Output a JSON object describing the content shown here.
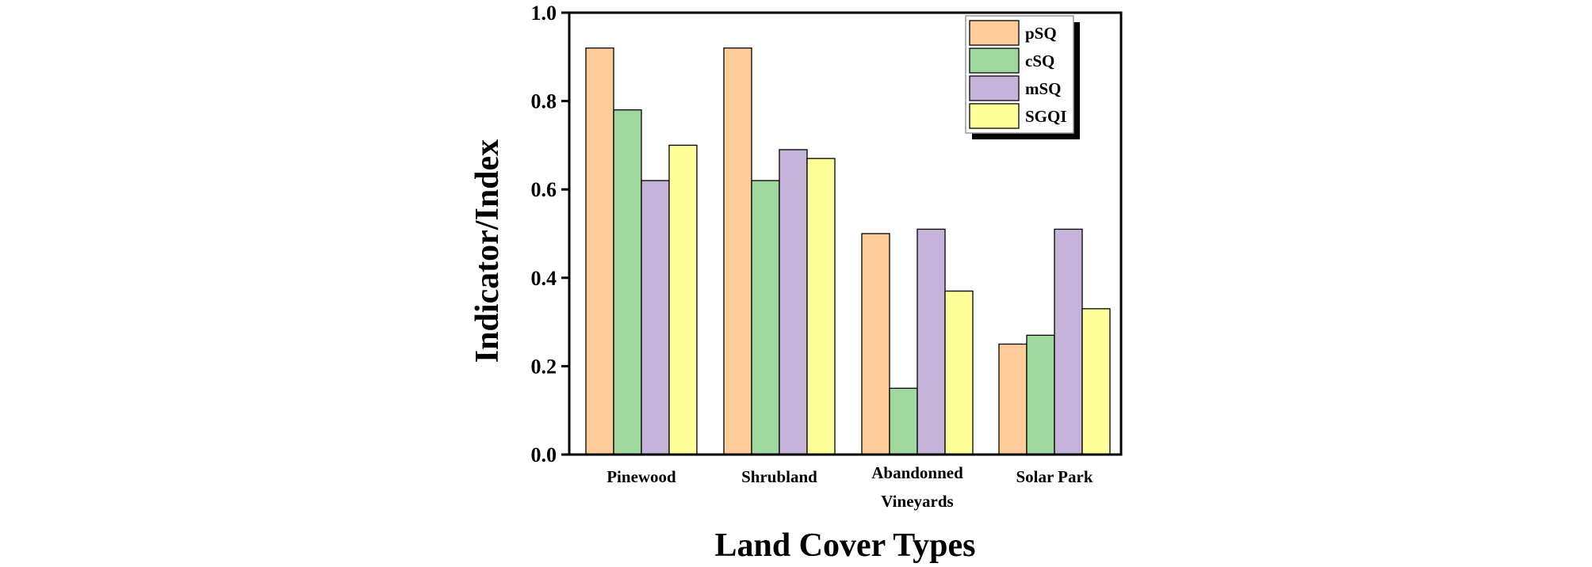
{
  "chart_data": {
    "type": "bar",
    "title": "",
    "xlabel": "Land Cover Types",
    "ylabel": "Indicator/Index",
    "ylim": [
      0,
      1.0
    ],
    "yticks": [
      "0.0",
      "0.2",
      "0.4",
      "0.6",
      "0.8",
      "1.0"
    ],
    "categories": [
      [
        "Pinewood"
      ],
      [
        "Shrubland"
      ],
      [
        "Abandonned",
        "Vineyards"
      ],
      [
        "Solar Park"
      ]
    ],
    "series": [
      {
        "name": "pSQ",
        "color": "#FFCC99",
        "values": [
          0.92,
          0.92,
          0.5,
          0.25
        ]
      },
      {
        "name": "cSQ",
        "color": "#9FD89F",
        "values": [
          0.78,
          0.62,
          0.15,
          0.27
        ]
      },
      {
        "name": "mSQ",
        "color": "#C6B3D9",
        "values": [
          0.62,
          0.69,
          0.51,
          0.51
        ]
      },
      {
        "name": "SGQI",
        "color": "#FFFF99",
        "values": [
          0.7,
          0.67,
          0.37,
          0.33
        ]
      }
    ],
    "legend_position": "top-right",
    "grid": false
  }
}
